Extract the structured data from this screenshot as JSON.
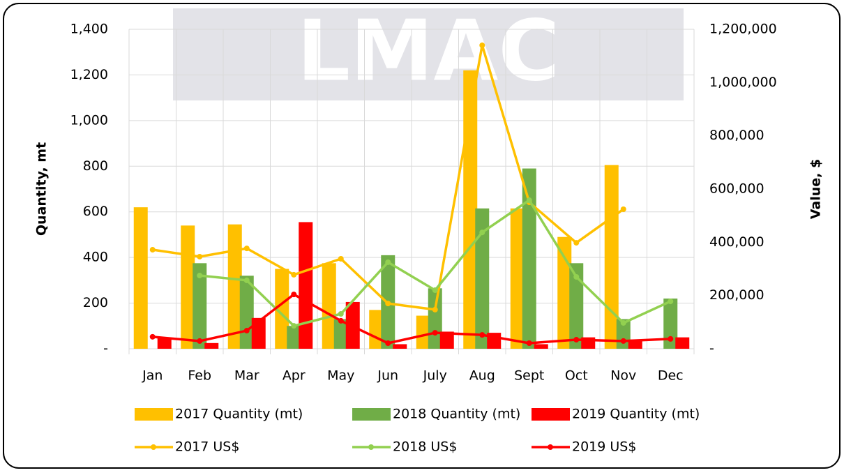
{
  "chart_data": {
    "type": "combo",
    "watermark": "LMAC",
    "y_label": "Quantity, mt",
    "y2_label": "Value, $",
    "categories": [
      "Jan",
      "Feb",
      "Mar",
      "Apr",
      "May",
      "Jun",
      "July",
      "Aug",
      "Sept",
      "Oct",
      "Nov",
      "Dec"
    ],
    "ylim": [
      0,
      1400
    ],
    "yticks": [
      {
        "value": 0,
        "label": "-"
      },
      200,
      400,
      600,
      800,
      {
        "value": 1000,
        "label": "1,000"
      },
      {
        "value": 1200,
        "label": "1,200"
      },
      {
        "value": 1400,
        "label": "1,400"
      }
    ],
    "y2lim": [
      0,
      1200000
    ],
    "y2ticks": [
      {
        "value": 0,
        "label": "-"
      },
      {
        "value": 200000,
        "label": "200,000"
      },
      {
        "value": 400000,
        "label": "400,000"
      },
      {
        "value": 600000,
        "label": "600,000"
      },
      {
        "value": 800000,
        "label": "800,000"
      },
      {
        "value": 1000000,
        "label": "1,000,000"
      },
      {
        "value": 1200000,
        "label": "1,200,000"
      }
    ],
    "grid": true,
    "series": [
      {
        "name": "2017 Quantity (mt)",
        "type": "bar",
        "color": "#ffc000",
        "values": [
          620,
          540,
          545,
          350,
          375,
          170,
          145,
          1220,
          615,
          490,
          805,
          null
        ]
      },
      {
        "name": "2018 Quantity (mt)",
        "type": "bar",
        "color": "#70ad47",
        "values": [
          null,
          375,
          320,
          100,
          130,
          410,
          265,
          615,
          790,
          375,
          130,
          220
        ]
      },
      {
        "name": "2019 Quantity (mt)",
        "type": "bar",
        "color": "#ff0000",
        "values": [
          50,
          25,
          135,
          555,
          205,
          20,
          75,
          70,
          20,
          50,
          40,
          50
        ]
      },
      {
        "name": "2017 US$",
        "type": "line",
        "axis": "y2",
        "color": "#ffc000",
        "values": [
          372000,
          346000,
          377000,
          278000,
          338000,
          170000,
          147000,
          1140000,
          550000,
          398000,
          524000,
          null
        ]
      },
      {
        "name": "2018 US$",
        "type": "line",
        "axis": "y2",
        "color": "#92d050",
        "values": [
          null,
          275000,
          257000,
          86000,
          131000,
          325000,
          220000,
          437000,
          558000,
          270000,
          97000,
          178000
        ]
      },
      {
        "name": "2019 US$",
        "type": "line",
        "axis": "y2",
        "color": "#ff0000",
        "values": [
          45000,
          29000,
          68000,
          204000,
          105000,
          21000,
          60000,
          52000,
          21000,
          34000,
          29000,
          37000
        ]
      }
    ]
  }
}
